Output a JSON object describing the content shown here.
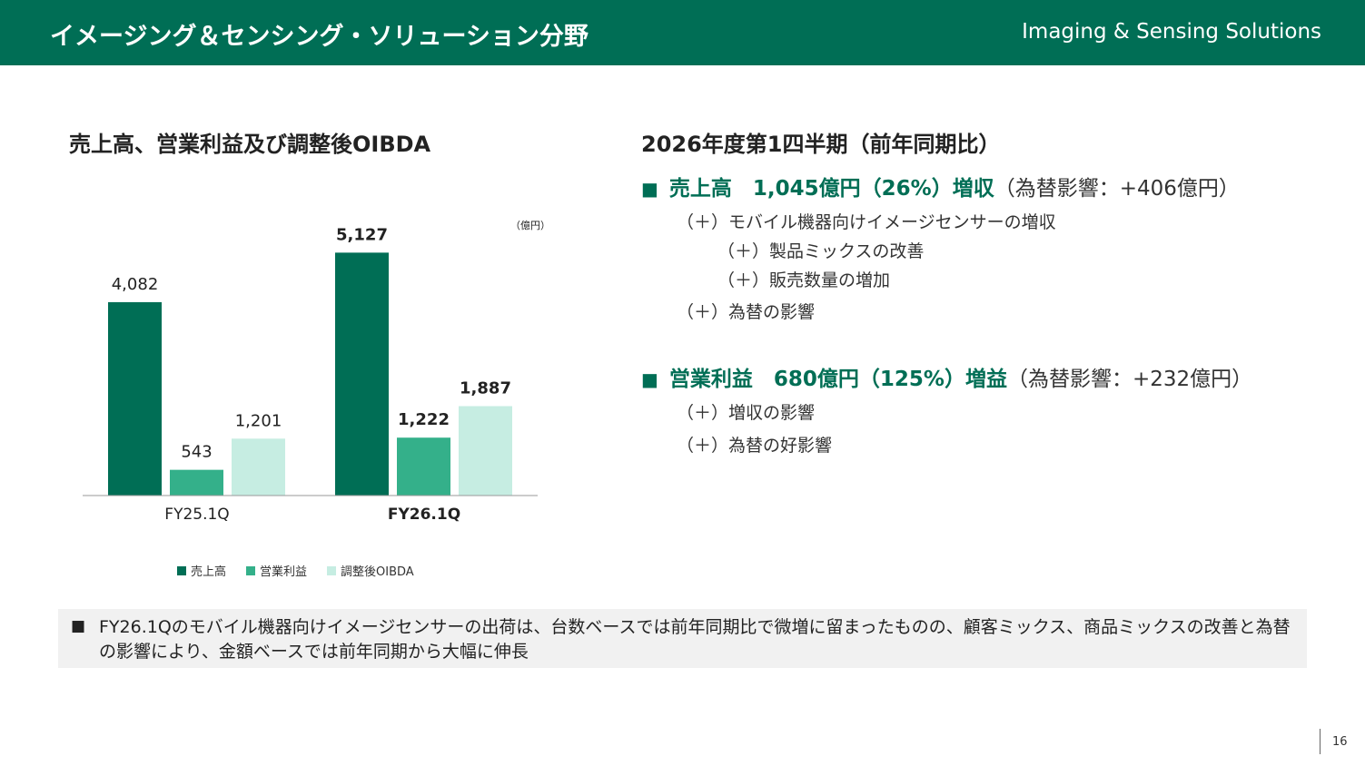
{
  "header": {
    "title": "イメージング＆センシング・ソリューション分野",
    "subtitle": "Imaging & Sensing Solutions"
  },
  "chart_title": "売上高、営業利益及び調整後OIBDA",
  "chart_data": {
    "type": "bar",
    "unit_label": "（億円）",
    "categories": [
      "FY25.1Q",
      "FY26.1Q"
    ],
    "series": [
      {
        "name": "売上高",
        "color": "#006e55",
        "values": [
          4082,
          5127
        ],
        "labels": [
          "4,082",
          "5,127"
        ]
      },
      {
        "name": "営業利益",
        "color": "#34b08a",
        "values": [
          543,
          1222
        ],
        "labels": [
          "543",
          "1,222"
        ]
      },
      {
        "name": "調整後OIBDA",
        "color": "#c6ede2",
        "values": [
          1201,
          1887
        ],
        "labels": [
          "1,201",
          "1,887"
        ]
      }
    ],
    "bold_category_index": 1,
    "ylim": [
      0,
      5500
    ]
  },
  "right": {
    "title": "2026年度第1四半期（前年同期比）",
    "sales": {
      "square": "■",
      "highlight": "売上高　1,045億円（26%）増収",
      "rest": "（為替影響：+406億円）",
      "items": [
        "（＋）モバイル機器向けイメージセンサーの増収",
        "（＋）製品ミックスの改善",
        "（＋）販売数量の増加",
        "（＋）為替の影響"
      ]
    },
    "op": {
      "square": "■",
      "highlight": "営業利益　680億円（125%）増益",
      "rest": "（為替影響：+232億円）",
      "items": [
        "（＋）増収の影響",
        "（＋）為替の好影響"
      ]
    }
  },
  "note": {
    "square": "■",
    "text": "FY26.1Qのモバイル機器向けイメージセンサーの出荷は、台数ベースでは前年同期比で微増に留まったものの、顧客ミックス、商品ミックスの改善と為替の影響により、金額ベースでは前年同期から大幅に伸長"
  },
  "page_number": "16"
}
